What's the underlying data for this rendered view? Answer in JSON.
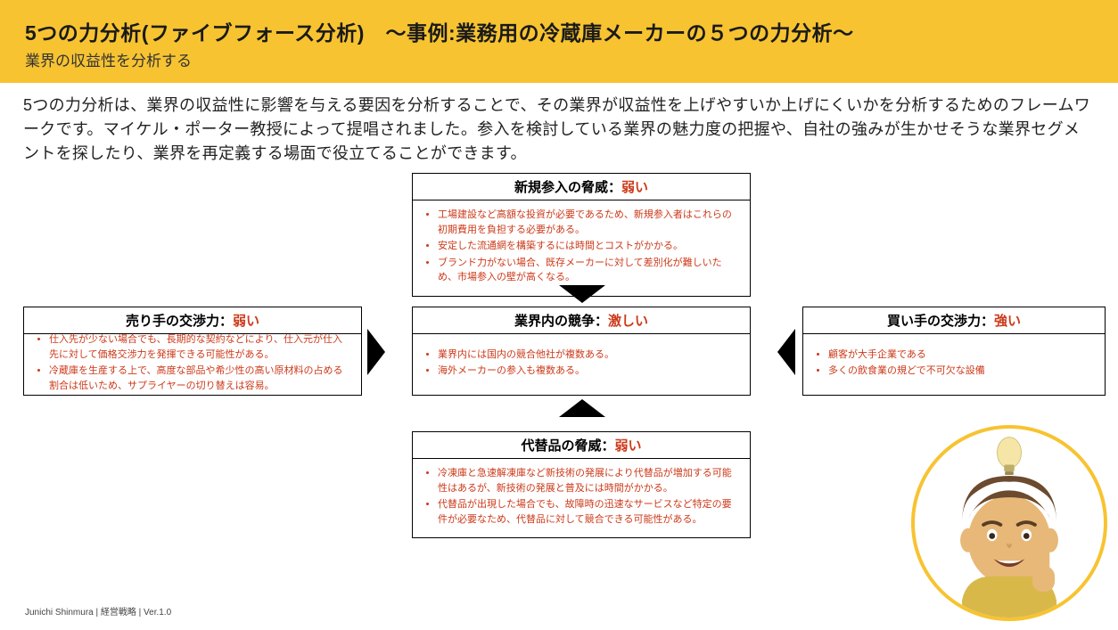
{
  "header": {
    "title": "5つの力分析(ファイブフォース分析)　〜事例:業務用の冷蔵庫メーカーの５つの力分析〜",
    "subtitle": "業界の収益性を分析する"
  },
  "intro": "5つの力分析は、業界の収益性に影響を与える要因を分析することで、その業界が収益性を上げやすいか上げにくいかを分析するためのフレームワークです。マイケル・ポーター教授によって提唱されました。参入を検討している業界の魅力度の把握や、自社の強みが生かせそうな業界セグメントを探したり、業界を再定義する場面で役立てることができます。",
  "forces": {
    "top": {
      "label": "新規参入の脅威：",
      "level": "弱い",
      "bullets": [
        "工場建設など高額な投資が必要であるため、新規参入者はこれらの初期費用を負担する必要がある。",
        "安定した流通網を構築するには時間とコストがかかる。",
        "ブランド力がない場合、既存メーカーに対して差別化が難しいため、市場参入の壁が高くなる。"
      ]
    },
    "center": {
      "label": "業界内の競争：",
      "level": "激しい",
      "bullets": [
        "業界内には国内の競合他社が複数ある。",
        "海外メーカーの参入も複数ある。"
      ]
    },
    "bottom": {
      "label": "代替品の脅威：",
      "level": "弱い",
      "bullets": [
        "冷凍庫と急速解凍庫など新技術の発展により代替品が増加する可能性はあるが、新技術の発展と普及には時間がかかる。",
        "代替品が出現した場合でも、故障時の迅速なサービスなど特定の要件が必要なため、代替品に対して競合できる可能性がある。"
      ]
    },
    "left": {
      "label": "売り手の交渉力：",
      "level": "弱い",
      "bullets": [
        "仕入先が少ない場合でも、長期的な契約などにより、仕入元が仕入先に対して価格交渉力を発揮できる可能性がある。",
        "冷蔵庫を生産する上で、高度な部品や希少性の高い原材料の占める割合は低いため、サプライヤーの切り替えは容易。"
      ]
    },
    "right": {
      "label": "買い手の交渉力：",
      "level": "強い",
      "bullets": [
        "顧客が大手企業である",
        "多くの飲食業の規どで不可欠な設備"
      ]
    }
  },
  "colors": {
    "header_bg": "#f7c331",
    "accent_text": "#cc3a1a",
    "border": "#000000",
    "body_bg": "#ffffff"
  },
  "footer": "Junichi Shinmura  |  経営戦略  |  Ver.1.0",
  "avatar": {
    "description": "memoji-style character with brown hair pointing index finger up, lightbulb above head",
    "ring_color": "#f7c331"
  }
}
